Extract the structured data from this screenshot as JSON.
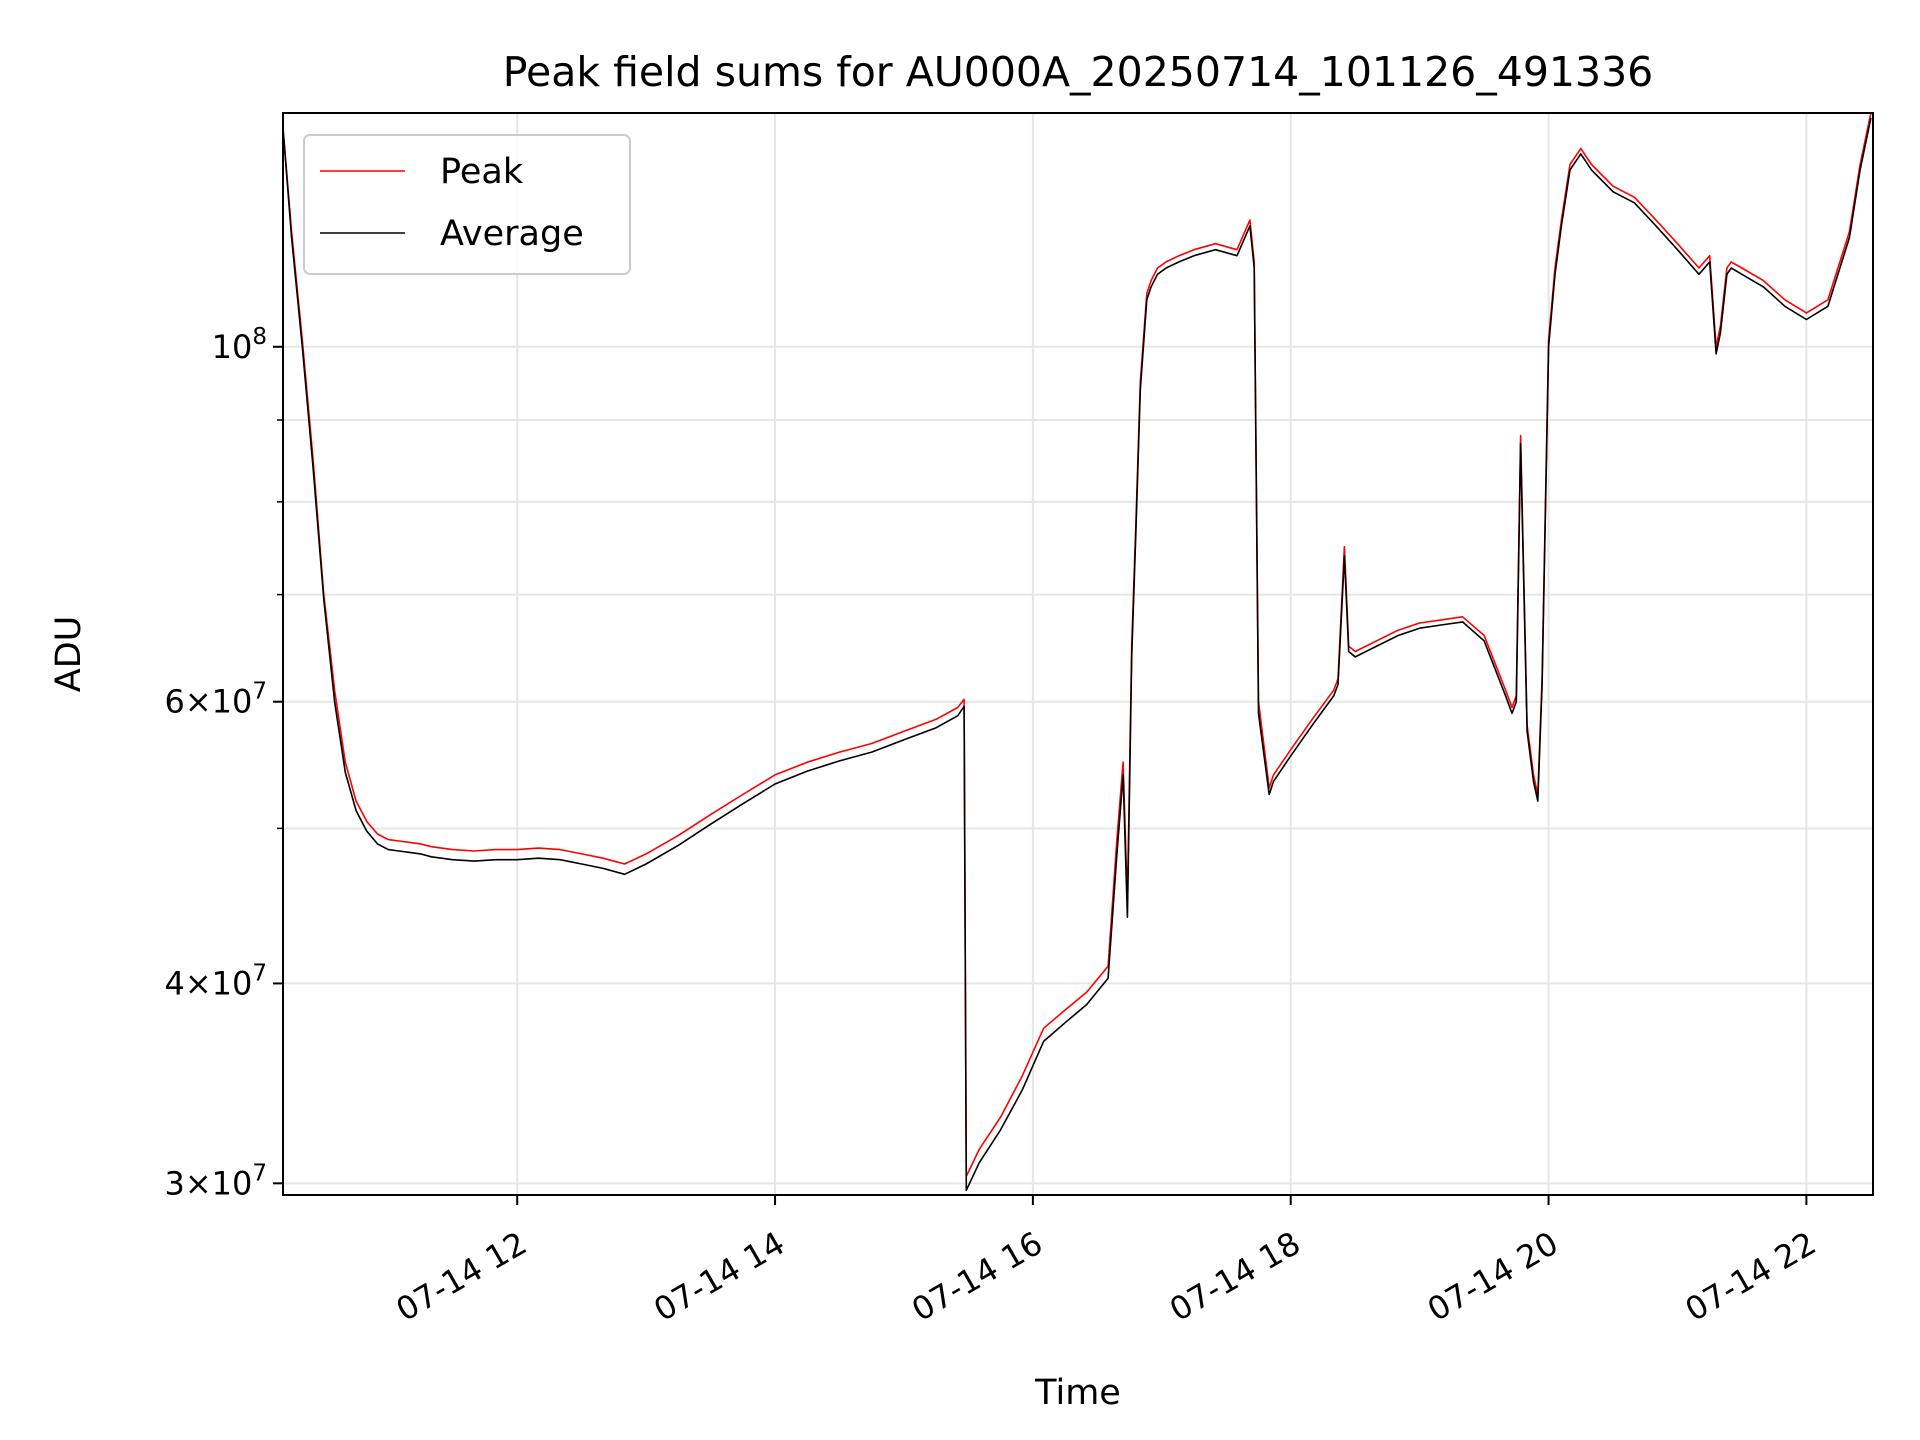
{
  "chart_data": {
    "type": "line",
    "title": "Peak field sums for AU000A_20250714_101126_491336",
    "xlabel": "Time",
    "ylabel": "ADU",
    "yscale": "log",
    "xlim": [
      "2025-07-14T10:11",
      "2025-07-14T22:31"
    ],
    "ylim": [
      29500000,
      140000000
    ],
    "grid": true,
    "legend_position": "top-left",
    "x_ticks": [
      {
        "value": "2025-07-14T12:00",
        "label": "07-14 12"
      },
      {
        "value": "2025-07-14T14:00",
        "label": "07-14 14"
      },
      {
        "value": "2025-07-14T16:00",
        "label": "07-14 16"
      },
      {
        "value": "2025-07-14T18:00",
        "label": "07-14 18"
      },
      {
        "value": "2025-07-14T20:00",
        "label": "07-14 20"
      },
      {
        "value": "2025-07-14T22:00",
        "label": "07-14 22"
      }
    ],
    "y_ticks": [
      {
        "value": 30000000,
        "mantissa": "3",
        "exp": "7"
      },
      {
        "value": 40000000,
        "mantissa": "4",
        "exp": "7"
      },
      {
        "value": 60000000,
        "mantissa": "6",
        "exp": "7"
      },
      {
        "value": 100000000,
        "mantissa": "",
        "exp": "8"
      }
    ],
    "y_minor_ticks": [
      50000000,
      70000000,
      80000000,
      90000000
    ],
    "x": [
      "2025-07-14T10:11",
      "2025-07-14T10:15",
      "2025-07-14T10:20",
      "2025-07-14T10:25",
      "2025-07-14T10:30",
      "2025-07-14T10:35",
      "2025-07-14T10:40",
      "2025-07-14T10:45",
      "2025-07-14T10:50",
      "2025-07-14T10:55",
      "2025-07-14T11:00",
      "2025-07-14T11:05",
      "2025-07-14T11:10",
      "2025-07-14T11:15",
      "2025-07-14T11:20",
      "2025-07-14T11:30",
      "2025-07-14T11:40",
      "2025-07-14T11:50",
      "2025-07-14T12:00",
      "2025-07-14T12:10",
      "2025-07-14T12:20",
      "2025-07-14T12:30",
      "2025-07-14T12:40",
      "2025-07-14T12:50",
      "2025-07-14T13:00",
      "2025-07-14T13:15",
      "2025-07-14T13:30",
      "2025-07-14T13:45",
      "2025-07-14T14:00",
      "2025-07-14T14:15",
      "2025-07-14T14:30",
      "2025-07-14T14:45",
      "2025-07-14T15:00",
      "2025-07-14T15:15",
      "2025-07-14T15:25",
      "2025-07-14T15:28",
      "2025-07-14T15:29",
      "2025-07-14T15:35",
      "2025-07-14T15:45",
      "2025-07-14T15:55",
      "2025-07-14T16:05",
      "2025-07-14T16:15",
      "2025-07-14T16:25",
      "2025-07-14T16:35",
      "2025-07-14T16:39",
      "2025-07-14T16:42",
      "2025-07-14T16:44",
      "2025-07-14T16:46",
      "2025-07-14T16:48",
      "2025-07-14T16:50",
      "2025-07-14T16:53",
      "2025-07-14T16:55",
      "2025-07-14T16:58",
      "2025-07-14T17:02",
      "2025-07-14T17:08",
      "2025-07-14T17:15",
      "2025-07-14T17:25",
      "2025-07-14T17:35",
      "2025-07-14T17:41",
      "2025-07-14T17:43",
      "2025-07-14T17:45",
      "2025-07-14T17:50",
      "2025-07-14T17:52",
      "2025-07-14T18:00",
      "2025-07-14T18:10",
      "2025-07-14T18:20",
      "2025-07-14T18:22",
      "2025-07-14T18:25",
      "2025-07-14T18:27",
      "2025-07-14T18:30",
      "2025-07-14T18:40",
      "2025-07-14T18:50",
      "2025-07-14T19:00",
      "2025-07-14T19:10",
      "2025-07-14T19:20",
      "2025-07-14T19:30",
      "2025-07-14T19:40",
      "2025-07-14T19:43",
      "2025-07-14T19:45",
      "2025-07-14T19:47",
      "2025-07-14T19:50",
      "2025-07-14T19:53",
      "2025-07-14T19:55",
      "2025-07-14T19:57",
      "2025-07-14T20:00",
      "2025-07-14T20:03",
      "2025-07-14T20:06",
      "2025-07-14T20:10",
      "2025-07-14T20:15",
      "2025-07-14T20:20",
      "2025-07-14T20:30",
      "2025-07-14T20:40",
      "2025-07-14T20:50",
      "2025-07-14T21:00",
      "2025-07-14T21:10",
      "2025-07-14T21:15",
      "2025-07-14T21:18",
      "2025-07-14T21:20",
      "2025-07-14T21:23",
      "2025-07-14T21:25",
      "2025-07-14T21:30",
      "2025-07-14T21:40",
      "2025-07-14T21:50",
      "2025-07-14T22:00",
      "2025-07-14T22:10",
      "2025-07-14T22:20",
      "2025-07-14T22:25",
      "2025-07-14T22:30"
    ],
    "series": [
      {
        "name": "Peak",
        "color": "#ff0000",
        "values": [
          137000000,
          118000000,
          101000000,
          85000000,
          70000000,
          61000000,
          55000000,
          52000000,
          50500000,
          49600000,
          49200000,
          49100000,
          49000000,
          48900000,
          48700000,
          48500000,
          48400000,
          48500000,
          48500000,
          48600000,
          48500000,
          48200000,
          47900000,
          47500000,
          48200000,
          49500000,
          51000000,
          52500000,
          54000000,
          55000000,
          55800000,
          56500000,
          57500000,
          58500000,
          59500000,
          60200000,
          30300000,
          31500000,
          33000000,
          35000000,
          37500000,
          38500000,
          39500000,
          41000000,
          49000000,
          55000000,
          45000000,
          65000000,
          78000000,
          95000000,
          108000000,
          110000000,
          112000000,
          113000000,
          114000000,
          115000000,
          116000000,
          115000000,
          120000000,
          113000000,
          60000000,
          53000000,
          54000000,
          56000000,
          58500000,
          61000000,
          62000000,
          75000000,
          65000000,
          64500000,
          65500000,
          66500000,
          67200000,
          67500000,
          67800000,
          66000000,
          61000000,
          59500000,
          60500000,
          88000000,
          58000000,
          54000000,
          52500000,
          62000000,
          101000000,
          112000000,
          120000000,
          130000000,
          133000000,
          130000000,
          126000000,
          124000000,
          120000000,
          116000000,
          112000000,
          114000000,
          100000000,
          103000000,
          112000000,
          113000000,
          112000000,
          110000000,
          107000000,
          105000000,
          107000000,
          118000000,
          130000000,
          140000000
        ]
      },
      {
        "name": "Average",
        "color": "#000000",
        "values": [
          137000000,
          117000000,
          100000000,
          84000000,
          69500000,
          60000000,
          54200000,
          51300000,
          49800000,
          48900000,
          48500000,
          48400000,
          48300000,
          48200000,
          48000000,
          47800000,
          47700000,
          47800000,
          47800000,
          47900000,
          47800000,
          47500000,
          47200000,
          46800000,
          47500000,
          48800000,
          50300000,
          51800000,
          53300000,
          54300000,
          55100000,
          55800000,
          56800000,
          57800000,
          58800000,
          59600000,
          29700000,
          30900000,
          32400000,
          34300000,
          36800000,
          37800000,
          38800000,
          40300000,
          48000000,
          54000000,
          44000000,
          64000000,
          77000000,
          94000000,
          107000000,
          109000000,
          111000000,
          112000000,
          113000000,
          114000000,
          115000000,
          114000000,
          119000000,
          112000000,
          59000000,
          52500000,
          53500000,
          55500000,
          58000000,
          60500000,
          61500000,
          74000000,
          64500000,
          64000000,
          65000000,
          66000000,
          66700000,
          67000000,
          67300000,
          65500000,
          60500000,
          59000000,
          60000000,
          87000000,
          57500000,
          53500000,
          52000000,
          61500000,
          100000000,
          111000000,
          119000000,
          129000000,
          132000000,
          129000000,
          125000000,
          123000000,
          119000000,
          115000000,
          111000000,
          113000000,
          99000000,
          102000000,
          111000000,
          112000000,
          111000000,
          109000000,
          106000000,
          104000000,
          106000000,
          117000000,
          129000000,
          139000000
        ]
      }
    ]
  }
}
